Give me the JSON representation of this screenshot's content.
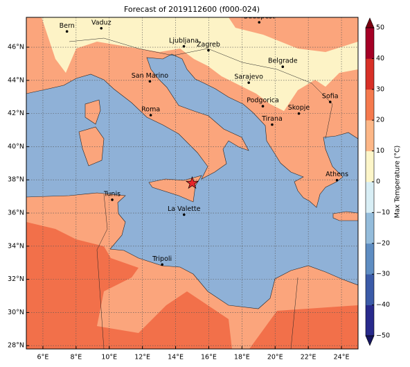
{
  "map": {
    "title": "Forecast of 2019112600 (f000-024)",
    "xlim": [
      5,
      25
    ],
    "ylim": [
      27.8,
      47.8
    ],
    "xticks": [
      {
        "value": 6,
        "label": "6°E"
      },
      {
        "value": 8,
        "label": "8°E"
      },
      {
        "value": 10,
        "label": "10°E"
      },
      {
        "value": 12,
        "label": "12°E"
      },
      {
        "value": 14,
        "label": "14°E"
      },
      {
        "value": 16,
        "label": "16°E"
      },
      {
        "value": 18,
        "label": "18°E"
      },
      {
        "value": 20,
        "label": "20°E"
      },
      {
        "value": 22,
        "label": "22°E"
      },
      {
        "value": 24,
        "label": "24°E"
      }
    ],
    "yticks": [
      {
        "value": 28,
        "label": "28°N"
      },
      {
        "value": 30,
        "label": "30°N"
      },
      {
        "value": 32,
        "label": "32°N"
      },
      {
        "value": 34,
        "label": "34°N"
      },
      {
        "value": 36,
        "label": "36°N"
      },
      {
        "value": 38,
        "label": "38°N"
      },
      {
        "value": 40,
        "label": "40°N"
      },
      {
        "value": 42,
        "label": "42°N"
      },
      {
        "value": 44,
        "label": "44°N"
      },
      {
        "value": 46,
        "label": "46°N"
      }
    ],
    "grid": true,
    "cities": [
      {
        "name": "Bern",
        "lon": 7.45,
        "lat": 46.95
      },
      {
        "name": "Vaduz",
        "lon": 9.52,
        "lat": 47.14
      },
      {
        "name": "Budapest",
        "lon": 19.04,
        "lat": 47.5
      },
      {
        "name": "Ljubljana",
        "lon": 14.5,
        "lat": 46.05
      },
      {
        "name": "Zagreb",
        "lon": 15.98,
        "lat": 45.81
      },
      {
        "name": "Belgrade",
        "lon": 20.46,
        "lat": 44.82
      },
      {
        "name": "San Marino",
        "lon": 12.45,
        "lat": 43.94
      },
      {
        "name": "Sarajevo",
        "lon": 18.41,
        "lat": 43.86
      },
      {
        "name": "Sofia",
        "lon": 23.32,
        "lat": 42.7
      },
      {
        "name": "Podgorica",
        "lon": 19.26,
        "lat": 42.44
      },
      {
        "name": "Skopje",
        "lon": 21.43,
        "lat": 42.0
      },
      {
        "name": "Roma",
        "lon": 12.5,
        "lat": 41.9
      },
      {
        "name": "Tirana",
        "lon": 19.82,
        "lat": 41.33
      },
      {
        "name": "Athens",
        "lon": 23.73,
        "lat": 37.98
      },
      {
        "name": "Tunis",
        "lon": 10.18,
        "lat": 36.8
      },
      {
        "name": "La Valette",
        "lon": 14.51,
        "lat": 35.9
      },
      {
        "name": "Tripoli",
        "lon": 13.19,
        "lat": 32.89
      }
    ],
    "star": {
      "lon": 15.0,
      "lat": 37.8,
      "color": "#e8262a"
    },
    "colorbar": {
      "label": "Max Temperature (°C)",
      "lim": [
        -50,
        50
      ],
      "ticks": [
        {
          "value": -50,
          "label": "−50"
        },
        {
          "value": -40,
          "label": "−40"
        },
        {
          "value": -30,
          "label": "−30"
        },
        {
          "value": -20,
          "label": "−20"
        },
        {
          "value": -10,
          "label": "−10"
        },
        0,
        10,
        20,
        30,
        40,
        50
      ],
      "colors": [
        "#282a8c",
        "#3b5ba8",
        "#5e8dc2",
        "#94bcdb",
        "#d8eef5",
        "#fdf6c9",
        "#fdb787",
        "#f57a4e",
        "#d73027",
        "#a50026"
      ],
      "under_color": "#161660",
      "over_color": "#7a0010"
    }
  }
}
